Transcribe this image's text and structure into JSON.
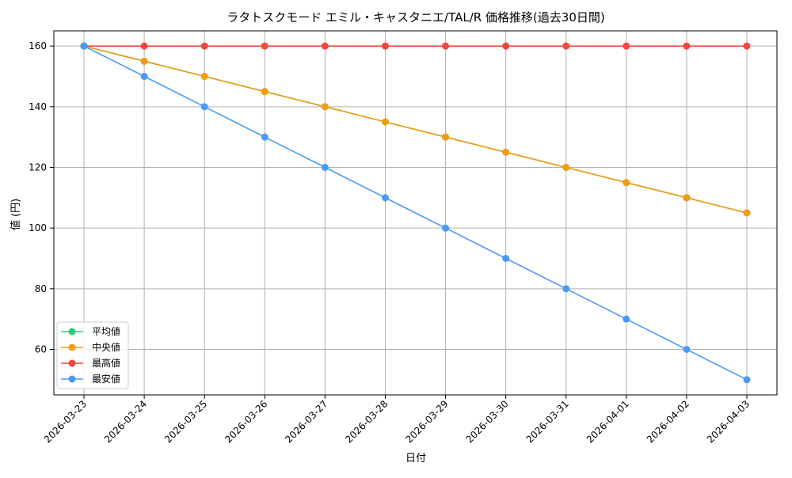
{
  "chart_data": {
    "type": "line",
    "title": "ラタトスクモード エミル・キャスタニエ/TAL/R 価格推移(過去30日間)",
    "xlabel": "日付",
    "ylabel": "値 (円)",
    "categories": [
      "2026-03-23",
      "2026-03-24",
      "2026-03-25",
      "2026-03-26",
      "2026-03-27",
      "2026-03-28",
      "2026-03-29",
      "2026-03-30",
      "2026-03-31",
      "2026-04-01",
      "2026-04-02",
      "2026-04-03"
    ],
    "ylim": [
      45,
      165
    ],
    "yticks": [
      60,
      80,
      100,
      120,
      140,
      160
    ],
    "grid": true,
    "legend_position": "lower-left",
    "series": [
      {
        "name": "平均値",
        "color": "#2ecc71",
        "values": [
          160,
          155,
          150,
          145,
          140,
          135,
          130,
          125,
          120,
          115,
          110,
          105
        ]
      },
      {
        "name": "中央値",
        "color": "#f39c12",
        "values": [
          160,
          155,
          150,
          145,
          140,
          135,
          130,
          125,
          120,
          115,
          110,
          105
        ]
      },
      {
        "name": "最高値",
        "color": "#f0473f",
        "values": [
          160,
          160,
          160,
          160,
          160,
          160,
          160,
          160,
          160,
          160,
          160,
          160
        ]
      },
      {
        "name": "最安値",
        "color": "#4a9af5",
        "values": [
          160,
          150,
          140,
          130,
          120,
          110,
          100,
          90,
          80,
          70,
          60,
          50
        ]
      }
    ]
  }
}
